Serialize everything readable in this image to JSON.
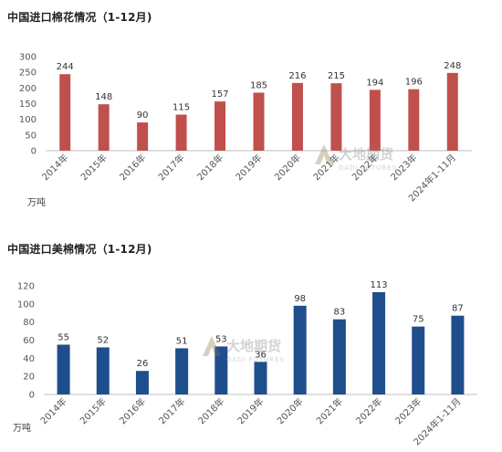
{
  "chart_data": [
    {
      "type": "bar",
      "title": "中国进口棉花情况（1-12月)",
      "ylabel": "万吨",
      "categories": [
        "2014年",
        "2015年",
        "2016年",
        "2017年",
        "2018年",
        "2019年",
        "2020年",
        "2021年",
        "2022年",
        "2023年",
        "2024年1-11月"
      ],
      "values": [
        244,
        148,
        90,
        115,
        157,
        185,
        216,
        215,
        194,
        196,
        248
      ],
      "ylim": [
        0,
        300
      ],
      "yticks": [
        0,
        50,
        100,
        150,
        200,
        250,
        300
      ],
      "bar_color": "#c0504d",
      "grid": false,
      "legend": "none"
    },
    {
      "type": "bar",
      "title": "中国进口美棉情况（1-12月)",
      "ylabel": "万吨",
      "categories": [
        "2014年",
        "2015年",
        "2016年",
        "2017年",
        "2018年",
        "2019年",
        "2020年",
        "2021年",
        "2022年",
        "2023年",
        "2024年1-11月"
      ],
      "values": [
        55,
        52,
        26,
        51,
        53,
        36,
        98,
        83,
        113,
        75,
        87
      ],
      "ylim": [
        0,
        120
      ],
      "yticks": [
        0,
        20,
        40,
        60,
        80,
        100,
        120
      ],
      "bar_color": "#1f4e8c",
      "grid": false,
      "legend": "none"
    }
  ],
  "watermark": {
    "brand_cn": "大地期货",
    "brand_en": "DADI FUTURES"
  }
}
